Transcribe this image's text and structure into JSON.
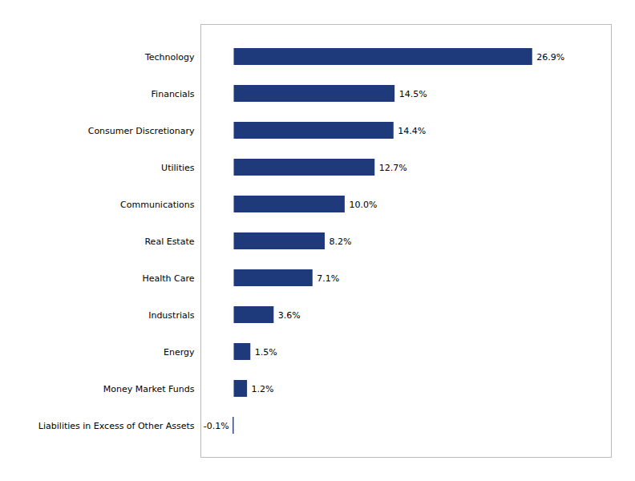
{
  "chart_data": {
    "type": "bar",
    "orientation": "horizontal",
    "categories": [
      "Technology",
      "Financials",
      "Consumer Discretionary",
      "Utilities",
      "Communications",
      "Real Estate",
      "Health Care",
      "Industrials",
      "Energy",
      "Money Market Funds",
      "Liabilities in Excess of Other Assets"
    ],
    "values": [
      26.9,
      14.5,
      14.4,
      12.7,
      10.0,
      8.2,
      7.1,
      3.6,
      1.5,
      1.2,
      -0.1
    ],
    "value_labels": [
      "26.9%",
      "14.5%",
      "14.4%",
      "12.7%",
      "10.0%",
      "8.2%",
      "7.1%",
      "3.6%",
      "1.5%",
      "1.2%",
      "-0.1%"
    ],
    "color": "#1F3A7A",
    "xlim": [
      -3.0,
      34.0
    ],
    "data_labels": true,
    "tick_labels": "y",
    "grid": false
  }
}
